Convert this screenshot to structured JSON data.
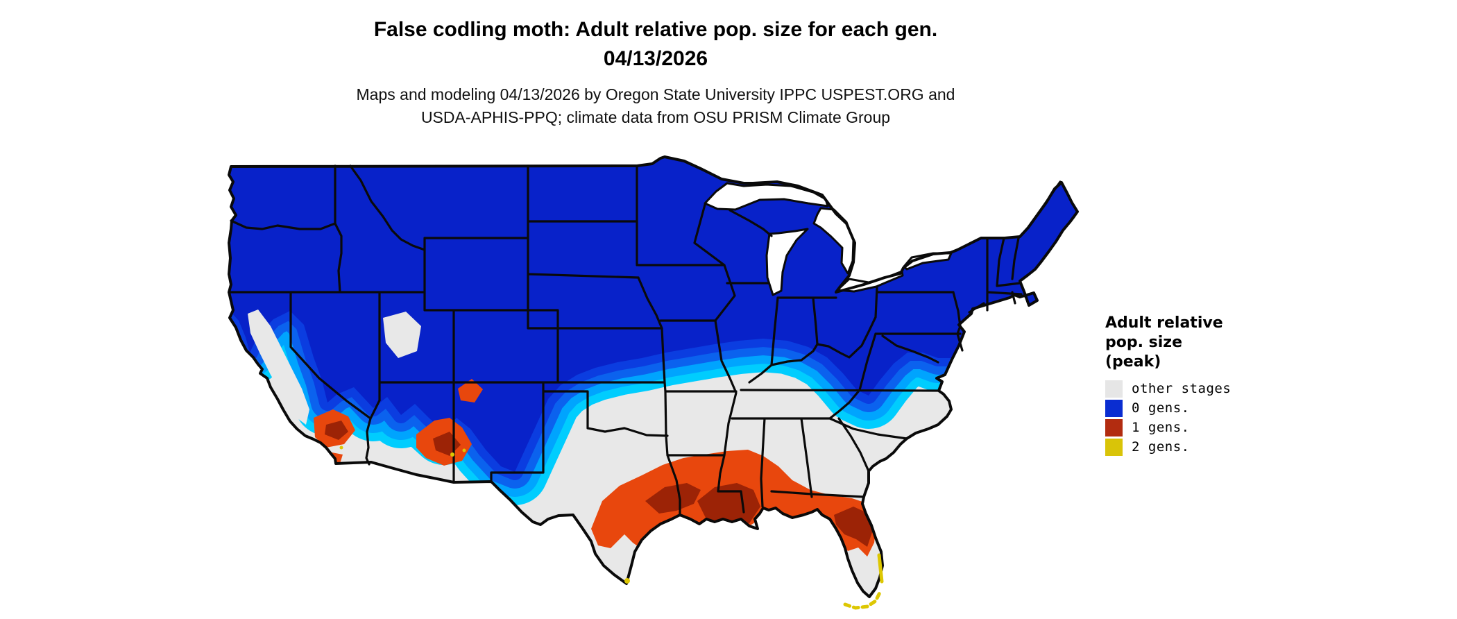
{
  "title": {
    "line1": "False codling moth: Adult relative pop. size for each gen.",
    "line2": "04/13/2026"
  },
  "subtitle": {
    "line1": "Maps and modeling 04/13/2026 by Oregon State University IPPC USPEST.ORG and",
    "line2": "USDA-APHIS-PPQ; climate data from OSU PRISM Climate Group"
  },
  "legend": {
    "title": "Adult relative pop. size (peak)",
    "title_lines": [
      "Adult relative",
      "pop. size",
      "(peak)"
    ],
    "items": [
      {
        "label": "other stages",
        "color": "#e6e6e6"
      },
      {
        "label": "0 gens.",
        "color": "#0a2dd1"
      },
      {
        "label": "1 gens.",
        "color": "#b22c10"
      },
      {
        "label": "2 gens.",
        "color": "#d9c408"
      }
    ]
  },
  "map": {
    "palette": {
      "gen0": "#0822c9",
      "gen0_band1": "#0b3de0",
      "gen0_band2": "#0b62ee",
      "gen0_band3": "#00a4fe",
      "gen0_band4": "#00cdfe",
      "other_stages": "#e8e8e8",
      "gen1": "#e8470d",
      "gen1_core": "#9c2306",
      "gen2": "#ddc702",
      "state_border": "#0a0a0a",
      "water": "#ffffff"
    },
    "map_data": {
      "type": "choropleth-raster",
      "region": "contiguous United States",
      "date": "04/13/2026",
      "variable": "Adult relative pop. size (peak), generations completed",
      "classes": [
        "other stages",
        "0 gens.",
        "1 gens.",
        "2 gens."
      ],
      "distribution": [
        {
          "class": "0 gens.",
          "areas": "Pacific Northwest, northern California coast, Rocky Mountains and Great Basin highlands, northern Plains, Midwest, Great Lakes, Northeast, Appalachians south into Virginia"
        },
        {
          "class": "other stages",
          "areas": "California Central Valley and southern California interior, southern Nevada, desert Southwest lowlands, southern Plains, most of Texas and Oklahoma, mid-South and Southeast from Tennessee through the Carolinas, central and southern Florida interior"
        },
        {
          "class": "1 gens.",
          "areas": "south-coastal California, southern Arizona deserts, central and coastal Texas, Gulf Coast through Louisiana, southern Mississippi and Alabama, Florida panhandle and northern Florida"
        },
        {
          "class": "2 gens.",
          "areas": "far southern Florida coast and the Keys, southern tip of Texas, scattered spots in southern California and Arizona"
        }
      ]
    }
  }
}
